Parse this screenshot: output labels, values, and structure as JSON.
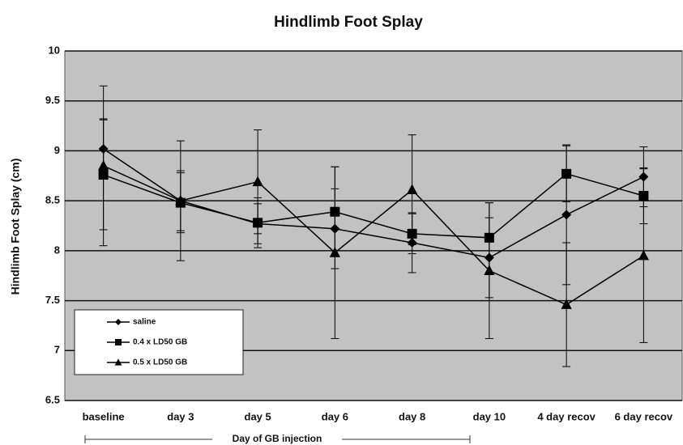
{
  "chart_data": {
    "type": "line",
    "title": "Hindlimb Foot Splay",
    "ylabel": "Hindlimb Foot Splay (cm)",
    "xlabel": "Day of GB injection",
    "categories": [
      "baseline",
      "day 3",
      "day 5",
      "day 6",
      "day 8",
      "day 10",
      "4 day recov",
      "6 day recov"
    ],
    "series": [
      {
        "name": "saline",
        "color": "#000000",
        "marker": "diamond",
        "values": [
          9.02,
          8.5,
          8.27,
          8.22,
          8.08,
          7.93,
          8.36,
          8.74
        ],
        "errors": [
          0.3,
          0.3,
          0.2,
          0.4,
          0.3,
          0.4,
          0.7,
          0.3
        ]
      },
      {
        "name": "0.4 x LD50 GB",
        "color": "#000000",
        "marker": "square",
        "values": [
          8.76,
          8.48,
          8.28,
          8.39,
          8.17,
          8.13,
          8.77,
          8.55
        ],
        "errors": [
          0.55,
          0.3,
          0.25,
          0.45,
          0.2,
          0.35,
          0.28,
          0.28
        ]
      },
      {
        "name": "0.5 x LD50 GB",
        "color": "#000000",
        "marker": "triangle",
        "values": [
          8.85,
          8.5,
          8.69,
          7.98,
          8.61,
          7.8,
          7.46,
          7.95
        ],
        "errors": [
          0.8,
          0.6,
          0.52,
          0.86,
          0.55,
          0.68,
          0.62,
          0.87
        ]
      }
    ],
    "ylim": [
      6.5,
      10
    ],
    "yticks": [
      6.5,
      7,
      7.5,
      8,
      8.5,
      9,
      9.5,
      10
    ],
    "grid": true,
    "legend": "lower left"
  }
}
